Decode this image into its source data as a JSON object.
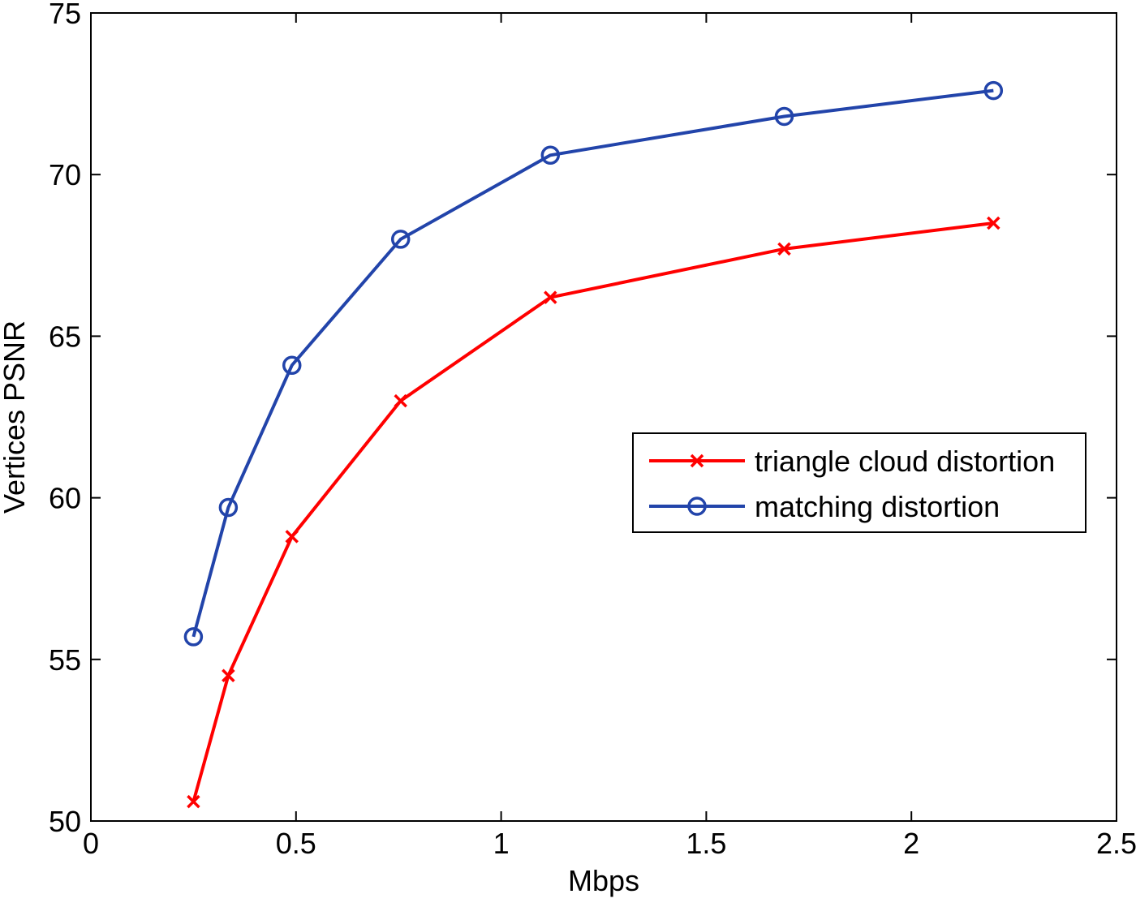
{
  "chart_data": {
    "type": "line",
    "title": "",
    "xlabel": "Mbps",
    "ylabel": "Vertices PSNR",
    "xlim": [
      0,
      2.5
    ],
    "ylim": [
      50,
      75
    ],
    "xticks": [
      0,
      0.5,
      1,
      1.5,
      2,
      2.5
    ],
    "xtick_labels": [
      "0",
      "0.5",
      "1",
      "1.5",
      "2",
      "2.5"
    ],
    "yticks": [
      50,
      55,
      60,
      65,
      70,
      75
    ],
    "ytick_labels": [
      "50",
      "55",
      "60",
      "65",
      "70",
      "75"
    ],
    "grid": false,
    "legend_position": "center-right",
    "series": [
      {
        "name": "triangle cloud distortion",
        "color": "#ff0000",
        "marker": "x",
        "x": [
          0.25,
          0.335,
          0.49,
          0.755,
          1.12,
          1.69,
          2.2
        ],
        "y": [
          50.6,
          54.5,
          58.8,
          63.0,
          66.2,
          67.7,
          68.5
        ]
      },
      {
        "name": "matching distortion",
        "color": "#2244aa",
        "marker": "o",
        "x": [
          0.25,
          0.335,
          0.49,
          0.755,
          1.12,
          1.69,
          2.2
        ],
        "y": [
          55.7,
          59.7,
          64.1,
          68.0,
          70.6,
          71.8,
          72.6
        ]
      }
    ]
  }
}
